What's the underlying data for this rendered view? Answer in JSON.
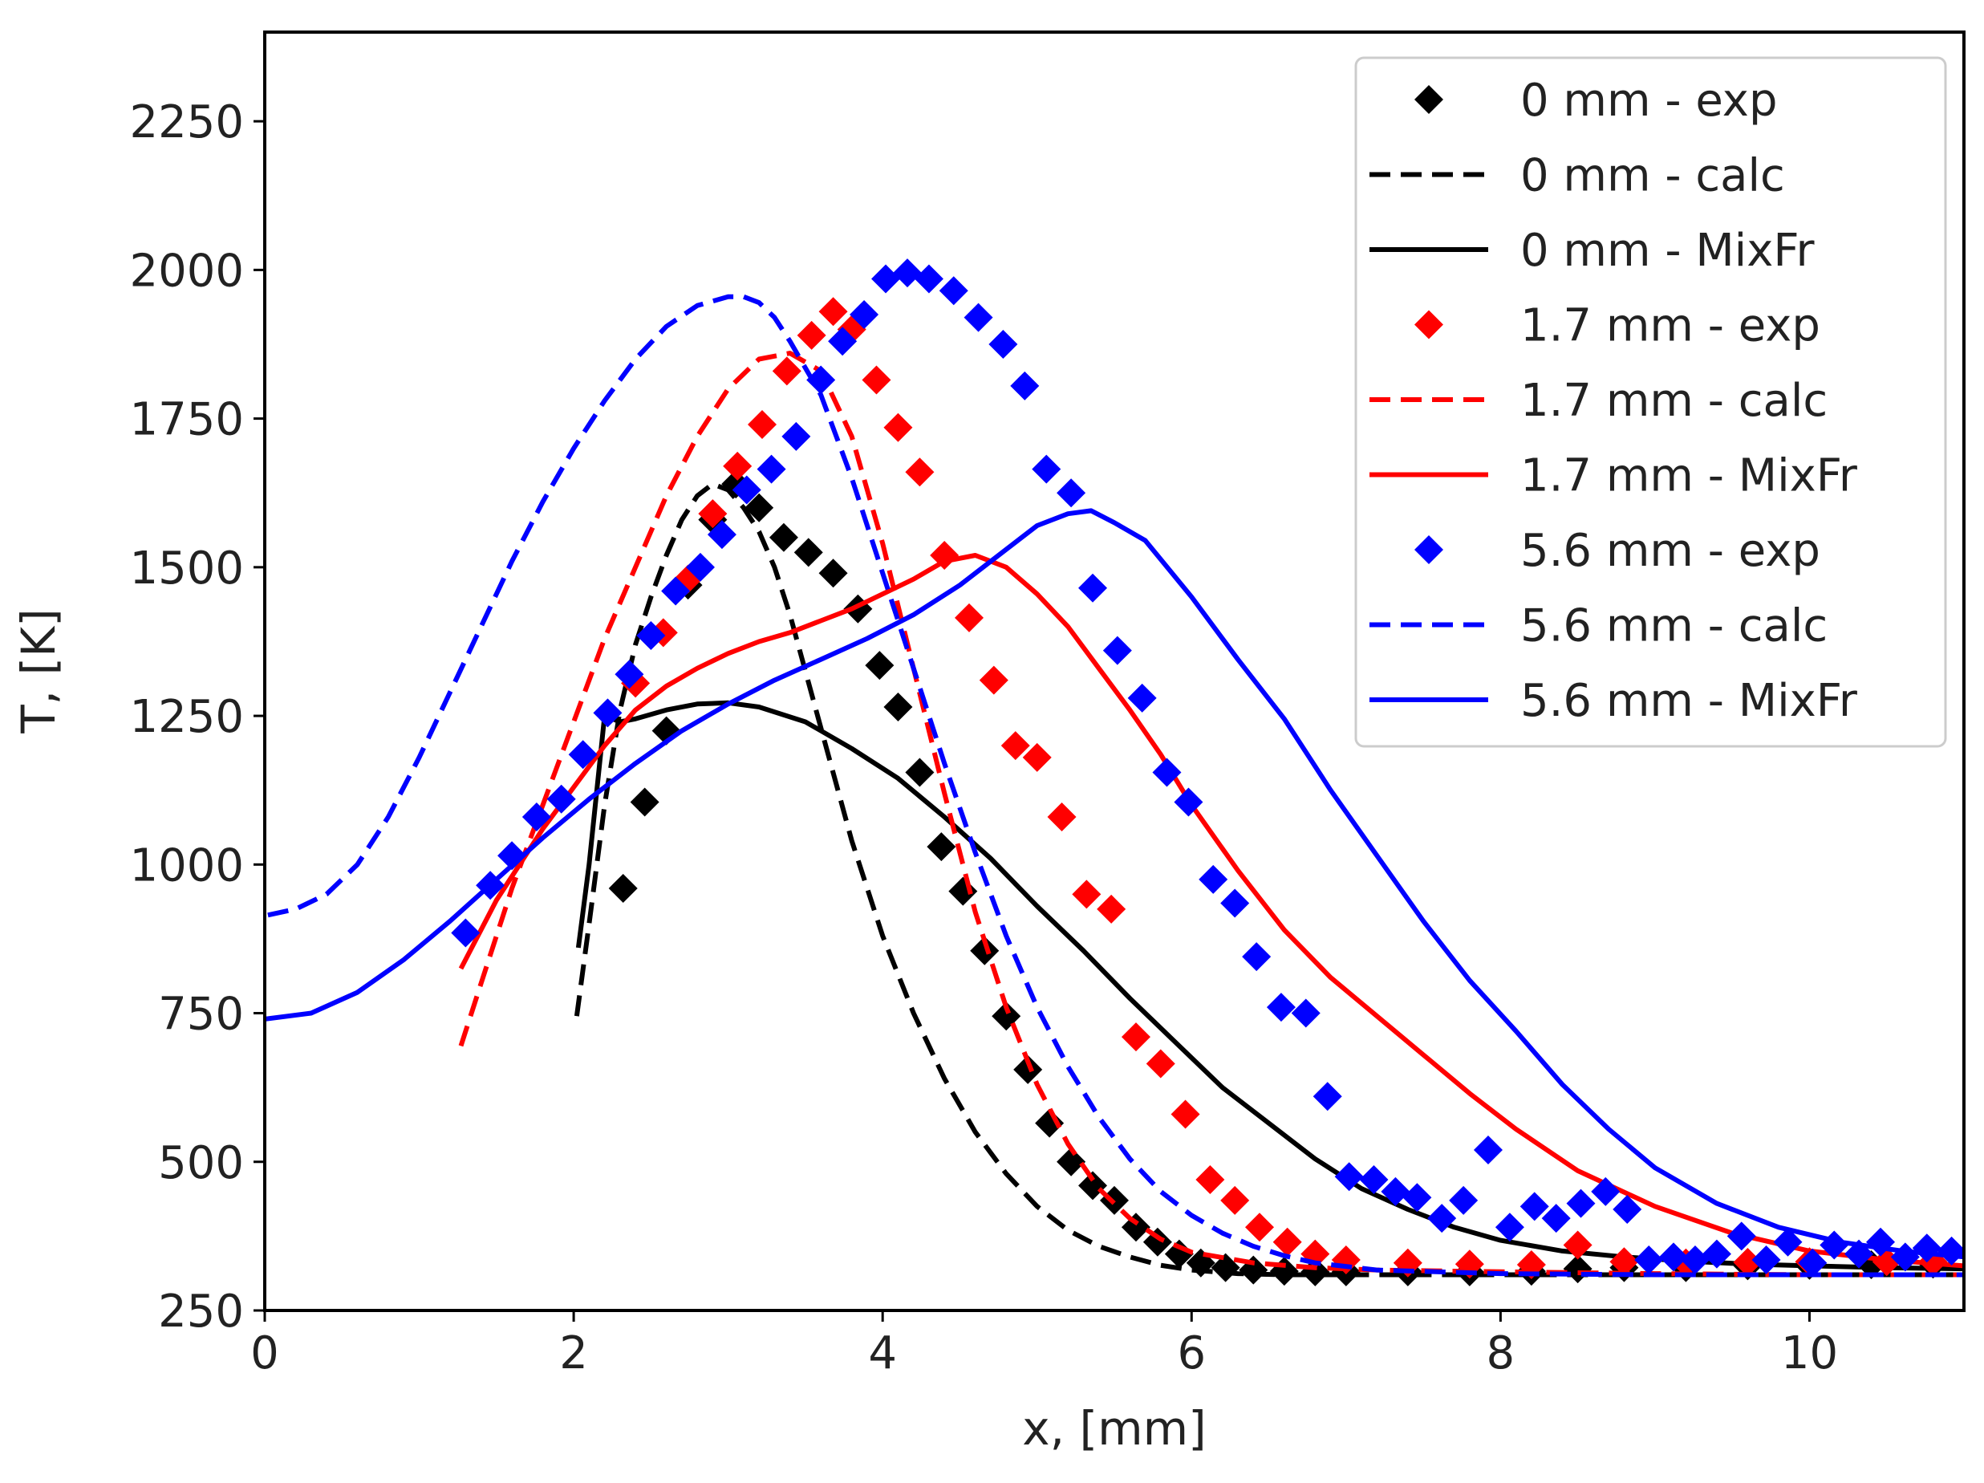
{
  "chart_data": {
    "type": "scatter",
    "title": "",
    "xlabel": "x, [mm]",
    "ylabel": "T, [K]",
    "xlim": [
      0,
      11
    ],
    "ylim": [
      250,
      2400
    ],
    "xticks": [
      0,
      2,
      4,
      6,
      8,
      10
    ],
    "yticks": [
      250,
      500,
      750,
      1000,
      1250,
      1500,
      1750,
      2000,
      2250
    ],
    "grid": false,
    "legend_position": "top-right",
    "colors": {
      "black": "#000000",
      "red": "#ff0000",
      "blue": "#0000ff"
    },
    "series": [
      {
        "name": "0 mm - exp",
        "color": "#000000",
        "style": "marker",
        "x": [
          2.32,
          2.46,
          2.6,
          2.74,
          2.9,
          3.05,
          3.2,
          3.36,
          3.52,
          3.68,
          3.84,
          3.98,
          4.1,
          4.24,
          4.38,
          4.52,
          4.66,
          4.8,
          4.94,
          5.08,
          5.22,
          5.36,
          5.5,
          5.64,
          5.78,
          5.92,
          6.06,
          6.22,
          6.4,
          6.6,
          6.8,
          7.0,
          7.4,
          7.8,
          8.2,
          8.5,
          8.8,
          9.2,
          9.6,
          10.0,
          10.4,
          10.8
        ],
        "y": [
          960,
          1105,
          1225,
          1470,
          1580,
          1640,
          1600,
          1550,
          1525,
          1490,
          1430,
          1335,
          1265,
          1155,
          1030,
          955,
          855,
          745,
          655,
          565,
          500,
          460,
          435,
          390,
          365,
          345,
          330,
          322,
          318,
          316,
          315,
          315,
          315,
          315,
          316,
          320,
          322,
          322,
          325,
          326,
          327,
          328
        ]
      },
      {
        "name": "0 mm - calc",
        "color": "#000000",
        "style": "dashed",
        "x": [
          2.02,
          2.1,
          2.2,
          2.3,
          2.4,
          2.5,
          2.6,
          2.7,
          2.8,
          2.9,
          3.0,
          3.1,
          3.2,
          3.3,
          3.4,
          3.6,
          3.8,
          4.0,
          4.2,
          4.4,
          4.6,
          4.8,
          5.0,
          5.2,
          5.4,
          5.6,
          5.8,
          6.0,
          6.3,
          6.6,
          7.0,
          7.5,
          8.0,
          9.0,
          10.0,
          11.0
        ],
        "y": [
          745,
          900,
          1100,
          1260,
          1370,
          1450,
          1520,
          1580,
          1620,
          1640,
          1630,
          1600,
          1560,
          1500,
          1420,
          1230,
          1040,
          880,
          750,
          640,
          550,
          480,
          425,
          385,
          358,
          340,
          326,
          318,
          312,
          310,
          310,
          310,
          310,
          310,
          310,
          310
        ]
      },
      {
        "name": "0 mm - MixFr",
        "color": "#000000",
        "style": "solid",
        "x": [
          2.03,
          2.1,
          2.2,
          2.3,
          2.4,
          2.6,
          2.8,
          3.0,
          3.2,
          3.5,
          3.8,
          4.1,
          4.4,
          4.7,
          5.0,
          5.3,
          5.6,
          5.9,
          6.2,
          6.5,
          6.8,
          7.1,
          7.4,
          7.7,
          8.0,
          8.4,
          8.8,
          9.2,
          9.6,
          10.0,
          10.5,
          11.0
        ],
        "y": [
          860,
          1000,
          1250,
          1240,
          1245,
          1260,
          1270,
          1272,
          1265,
          1240,
          1195,
          1145,
          1080,
          1010,
          930,
          855,
          775,
          700,
          625,
          565,
          505,
          455,
          420,
          390,
          368,
          350,
          340,
          333,
          328,
          325,
          322,
          320
        ]
      },
      {
        "name": "1.7 mm - exp",
        "color": "#ff0000",
        "style": "marker",
        "x": [
          2.4,
          2.58,
          2.74,
          2.9,
          3.06,
          3.22,
          3.38,
          3.54,
          3.68,
          3.8,
          3.96,
          4.1,
          4.24,
          4.4,
          4.56,
          4.72,
          4.86,
          5.0,
          5.16,
          5.32,
          5.48,
          5.64,
          5.8,
          5.96,
          6.12,
          6.28,
          6.44,
          6.62,
          6.8,
          7.0,
          7.4,
          7.8,
          8.2,
          8.5,
          8.8,
          9.2,
          9.6,
          10.0,
          10.5,
          10.8
        ],
        "y": [
          1305,
          1390,
          1480,
          1590,
          1670,
          1740,
          1830,
          1890,
          1930,
          1900,
          1815,
          1735,
          1660,
          1520,
          1415,
          1310,
          1200,
          1180,
          1080,
          950,
          925,
          710,
          665,
          580,
          470,
          435,
          390,
          365,
          345,
          335,
          330,
          328,
          327,
          360,
          332,
          330,
          331,
          332,
          332,
          332
        ]
      },
      {
        "name": "1.7 mm - calc",
        "color": "#ff0000",
        "style": "dashed",
        "x": [
          1.27,
          1.4,
          1.6,
          1.8,
          2.0,
          2.2,
          2.4,
          2.6,
          2.8,
          3.0,
          3.2,
          3.4,
          3.6,
          3.8,
          4.0,
          4.2,
          4.4,
          4.6,
          4.8,
          5.0,
          5.2,
          5.4,
          5.6,
          5.8,
          6.0,
          6.4,
          6.8,
          7.2,
          8.0,
          9.0,
          10.0,
          11.0
        ],
        "y": [
          695,
          800,
          960,
          1100,
          1240,
          1380,
          1500,
          1620,
          1720,
          1800,
          1850,
          1860,
          1830,
          1720,
          1540,
          1330,
          1120,
          920,
          760,
          630,
          530,
          455,
          405,
          370,
          348,
          330,
          322,
          318,
          315,
          312,
          310,
          310
        ]
      },
      {
        "name": "1.7 mm - MixFr",
        "color": "#ff0000",
        "style": "solid",
        "x": [
          1.27,
          1.5,
          1.8,
          2.0,
          2.2,
          2.4,
          2.6,
          2.8,
          3.0,
          3.2,
          3.4,
          3.6,
          3.8,
          4.0,
          4.2,
          4.4,
          4.6,
          4.8,
          5.0,
          5.2,
          5.4,
          5.6,
          5.8,
          6.0,
          6.3,
          6.6,
          6.9,
          7.2,
          7.5,
          7.8,
          8.1,
          8.5,
          9.0,
          9.5,
          10.0,
          10.5,
          11.0
        ],
        "y": [
          825,
          940,
          1060,
          1130,
          1200,
          1260,
          1300,
          1330,
          1355,
          1375,
          1390,
          1410,
          1430,
          1455,
          1480,
          1510,
          1520,
          1500,
          1455,
          1400,
          1330,
          1260,
          1185,
          1100,
          990,
          890,
          810,
          745,
          680,
          615,
          555,
          485,
          425,
          380,
          350,
          335,
          325
        ]
      },
      {
        "name": "5.6 mm - exp",
        "color": "#0000ff",
        "style": "marker",
        "x": [
          1.3,
          1.46,
          1.6,
          1.76,
          1.92,
          2.06,
          2.22,
          2.36,
          2.5,
          2.66,
          2.82,
          2.96,
          3.12,
          3.28,
          3.44,
          3.6,
          3.74,
          3.88,
          4.02,
          4.16,
          4.3,
          4.46,
          4.62,
          4.78,
          4.92,
          5.06,
          5.22,
          5.36,
          5.52,
          5.68,
          5.84,
          5.98,
          6.14,
          6.28,
          6.42,
          6.58,
          6.74,
          6.88,
          7.02,
          7.18,
          7.32,
          7.46,
          7.62,
          7.76,
          7.92,
          8.06,
          8.22,
          8.36,
          8.52,
          8.68,
          8.82,
          8.96,
          9.12,
          9.26,
          9.4,
          9.56,
          9.72,
          9.86,
          10.02,
          10.16,
          10.32,
          10.46,
          10.62,
          10.76,
          10.92
        ],
        "y": [
          885,
          965,
          1015,
          1080,
          1110,
          1185,
          1255,
          1320,
          1385,
          1460,
          1500,
          1555,
          1630,
          1665,
          1720,
          1815,
          1880,
          1925,
          1985,
          1995,
          1985,
          1965,
          1920,
          1875,
          1805,
          1665,
          1625,
          1465,
          1360,
          1280,
          1155,
          1105,
          975,
          935,
          845,
          760,
          750,
          610,
          475,
          470,
          450,
          440,
          405,
          435,
          520,
          390,
          425,
          405,
          430,
          450,
          420,
          335,
          340,
          335,
          345,
          375,
          335,
          365,
          330,
          360,
          345,
          365,
          340,
          355,
          350
        ]
      },
      {
        "name": "5.6 mm - calc",
        "color": "#0000ff",
        "style": "dashed",
        "x": [
          0.02,
          0.2,
          0.4,
          0.6,
          0.8,
          1.0,
          1.2,
          1.4,
          1.6,
          1.8,
          2.0,
          2.2,
          2.4,
          2.6,
          2.8,
          3.0,
          3.1,
          3.2,
          3.3,
          3.4,
          3.6,
          3.8,
          4.0,
          4.2,
          4.4,
          4.6,
          4.8,
          5.0,
          5.2,
          5.4,
          5.6,
          5.8,
          6.0,
          6.2,
          6.4,
          6.6,
          6.8,
          7.2,
          8.0,
          9.0,
          10.0,
          11.0
        ],
        "y": [
          915,
          925,
          950,
          1000,
          1080,
          1180,
          1290,
          1400,
          1510,
          1610,
          1700,
          1780,
          1850,
          1905,
          1940,
          1955,
          1955,
          1945,
          1920,
          1880,
          1790,
          1650,
          1490,
          1330,
          1170,
          1020,
          880,
          760,
          660,
          575,
          505,
          450,
          410,
          380,
          358,
          342,
          330,
          318,
          312,
          310,
          310,
          310
        ]
      },
      {
        "name": "5.6 mm - MixFr",
        "color": "#0000ff",
        "style": "solid",
        "x": [
          0.0,
          0.3,
          0.6,
          0.9,
          1.2,
          1.5,
          1.8,
          2.1,
          2.4,
          2.7,
          3.0,
          3.3,
          3.6,
          3.9,
          4.2,
          4.5,
          4.8,
          5.0,
          5.2,
          5.35,
          5.5,
          5.7,
          6.0,
          6.3,
          6.6,
          6.9,
          7.2,
          7.5,
          7.8,
          8.1,
          8.4,
          8.7,
          9.0,
          9.4,
          9.8,
          10.2,
          10.6,
          11.0
        ],
        "y": [
          740,
          750,
          785,
          840,
          905,
          975,
          1045,
          1110,
          1170,
          1225,
          1270,
          1310,
          1345,
          1380,
          1420,
          1470,
          1530,
          1570,
          1590,
          1595,
          1575,
          1545,
          1450,
          1345,
          1245,
          1125,
          1015,
          905,
          805,
          720,
          630,
          555,
          490,
          430,
          390,
          365,
          350,
          340
        ]
      }
    ]
  }
}
